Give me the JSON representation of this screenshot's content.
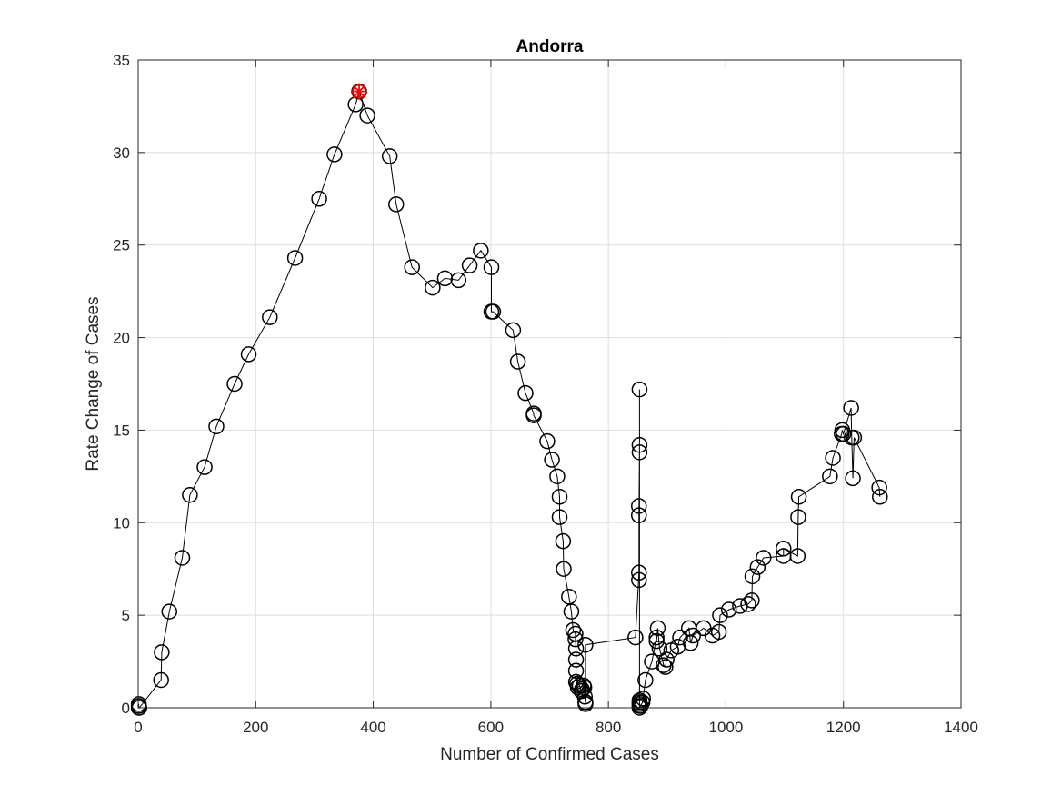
{
  "chart_data": {
    "type": "scatter",
    "title": "Andorra",
    "xlabel": "Number of Confirmed Cases",
    "ylabel": "Rate Change of Cases",
    "xlim": [
      0,
      1400
    ],
    "ylim": [
      0,
      35
    ],
    "xticks": [
      "0",
      "200",
      "400",
      "600",
      "800",
      "1000",
      "1200",
      "1400"
    ],
    "yticks": [
      "0",
      "5",
      "10",
      "15",
      "20",
      "25",
      "30",
      "35"
    ],
    "grid": true,
    "line_color": "#000000",
    "marker": "circle",
    "peak_marker_color": "#ff0000",
    "peak": {
      "x": 376,
      "y": 33.3
    },
    "series": [
      {
        "x": [
          1,
          1,
          1,
          1,
          2,
          39,
          40,
          53,
          75,
          88,
          113,
          133,
          164,
          188,
          224,
          267,
          308,
          334,
          370,
          376,
          390,
          428,
          439,
          466,
          501,
          522,
          545,
          564,
          583,
          601,
          601,
          604,
          638,
          646,
          659,
          673,
          673,
          696,
          704,
          713,
          717,
          717,
          723,
          724,
          733,
          737,
          740,
          744,
          744,
          745,
          745,
          745,
          745,
          747,
          748,
          751,
          754,
          755,
          758,
          759,
          760,
          761,
          761,
          761,
          761,
          846,
          852,
          852,
          852,
          852,
          853,
          853,
          853,
          853,
          853,
          853,
          853,
          853,
          855,
          858,
          859,
          863,
          874,
          882,
          882,
          884,
          887,
          894,
          897,
          899,
          907,
          918,
          922,
          937,
          940,
          944,
          962,
          977,
          988,
          990,
          1005,
          1024,
          1038,
          1044,
          1045,
          1054,
          1064,
          1098,
          1098,
          1122,
          1123,
          1124,
          1177,
          1182,
          1197,
          1198,
          1200,
          1213,
          1214,
          1216,
          1218,
          1261,
          1262
        ],
        "y": [
          0.1,
          0.2,
          0,
          0.1,
          0,
          1.5,
          3.0,
          5.2,
          8.1,
          11.5,
          13.0,
          15.2,
          17.5,
          19.1,
          21.1,
          24.3,
          27.5,
          29.9,
          32.6,
          33.3,
          32.0,
          29.8,
          27.2,
          23.8,
          22.7,
          23.2,
          23.1,
          23.9,
          24.7,
          23.8,
          21.4,
          21.4,
          20.4,
          18.7,
          17.0,
          15.9,
          15.8,
          14.4,
          13.4,
          12.5,
          11.4,
          10.3,
          9.0,
          7.5,
          6.0,
          5.2,
          4.2,
          4.0,
          3.7,
          3.2,
          2.6,
          2.0,
          1.4,
          1.3,
          1.1,
          1.2,
          0.9,
          1.0,
          1.2,
          1.1,
          0.6,
          0.3,
          0.2,
          0.3,
          3.4,
          3.8,
          7.3,
          6.9,
          10.9,
          10.4,
          14.2,
          13.8,
          17.2,
          0.4,
          0.3,
          0.2,
          0.1,
          0,
          0.1,
          0.3,
          0.5,
          1.5,
          2.5,
          3.8,
          3.6,
          4.3,
          3.2,
          2.3,
          2.2,
          2.6,
          3.1,
          3.3,
          3.8,
          4.3,
          3.5,
          3.9,
          4.3,
          3.9,
          4.1,
          5.0,
          5.3,
          5.5,
          5.6,
          5.8,
          7.1,
          7.6,
          8.1,
          8.2,
          8.6,
          8.2,
          10.3,
          11.4,
          12.5,
          13.5,
          14.8,
          15.0,
          14.8,
          16.2,
          14.6,
          12.4,
          14.6,
          11.9,
          11.4
        ]
      }
    ]
  }
}
